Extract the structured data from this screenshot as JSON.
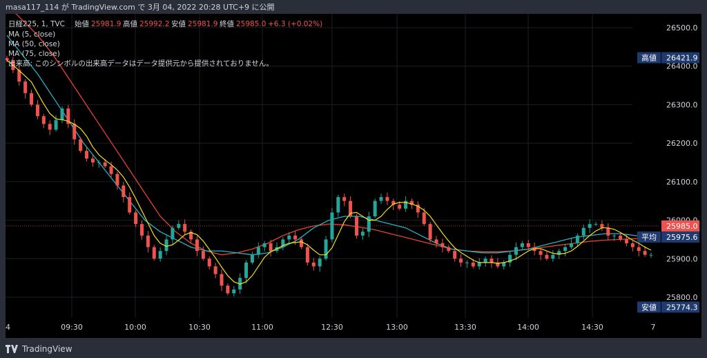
{
  "header": {
    "text": "masa117_114 が TradingView.com で 3月 04, 2022 20:28 UTC+9 に公開"
  },
  "legend": {
    "symbol": "日経225, 1, TVC",
    "ohlc": [
      {
        "label": "始値",
        "value": "25981.9"
      },
      {
        "label": "高値",
        "value": "25992.2"
      },
      {
        "label": "安値",
        "value": "25981.9"
      },
      {
        "label": "終値",
        "value": "25985.0"
      }
    ],
    "change": "+6.3 (+0.02%)",
    "indicators": [
      "MA (5, close)",
      "MA (50, close)",
      "MA (75, close)"
    ],
    "volume_note": "出来高: このシンボルの出来高データはデータ提供元から提供されておりません。"
  },
  "footer": {
    "brand": "TradingView"
  },
  "colors": {
    "background": "#000000",
    "frame": "#2a2e39",
    "up": "#26a69a",
    "down": "#ef5350",
    "ma5": "#f5e11b",
    "ma50": "#22b5c6",
    "ma75": "#e84430",
    "label_bg": "#1e3a6e",
    "last_label_bg": "#ef5350"
  },
  "chart_data": {
    "type": "candlestick",
    "y_axis": {
      "ticks": [
        "25800.0",
        "25900.0",
        "26000.0",
        "26100.0",
        "26200.0",
        "26300.0",
        "26400.0",
        "26500.0"
      ]
    },
    "x_axis": {
      "ticks": [
        "4",
        "09:30",
        "10:00",
        "10:30",
        "11:00",
        "12:30",
        "13:00",
        "13:30",
        "14:00",
        "14:30",
        "7"
      ]
    },
    "price_labels": [
      {
        "label": "高値",
        "value": "26421.9"
      },
      {
        "label": "",
        "value": "25985.0"
      },
      {
        "label": "平均",
        "value": "25975.6"
      },
      {
        "label": "安値",
        "value": "25774.3"
      }
    ],
    "close_series": [
      26415,
      26390,
      26360,
      26330,
      26300,
      26270,
      26250,
      26235,
      26260,
      26290,
      26250,
      26210,
      26180,
      26160,
      26150,
      26150,
      26140,
      26120,
      26090,
      26060,
      26020,
      25990,
      25960,
      25930,
      25900,
      25920,
      25950,
      25980,
      25990,
      25970,
      25950,
      25920,
      25900,
      25880,
      25860,
      25830,
      25810,
      25820,
      25850,
      25890,
      25910,
      25930,
      25940,
      25920,
      25930,
      25950,
      25960,
      25950,
      25930,
      25890,
      25880,
      25900,
      25950,
      26020,
      26060,
      26050,
      26010,
      25960,
      25970,
      26010,
      26050,
      26060,
      26050,
      26040,
      26030,
      26050,
      26040,
      26020,
      25990,
      25950,
      25940,
      25930,
      25920,
      25900,
      25890,
      25890,
      25880,
      25890,
      25900,
      25890,
      25880,
      25890,
      25910,
      25930,
      25940,
      25930,
      25920,
      25910,
      25900,
      25910,
      25920,
      25930,
      25940,
      25960,
      25980,
      25990,
      25990,
      25980,
      25960,
      25960,
      25950,
      25940,
      25930,
      25920,
      25910,
      25910
    ],
    "ma50_series": [
      26480,
      26430,
      26380,
      26320,
      26260,
      26200,
      26150,
      26100,
      26050,
      26000,
      25970,
      25950,
      25930,
      25920,
      25920,
      25915,
      25910,
      25915,
      25930,
      25950,
      25980,
      26000,
      26010,
      26010,
      26000,
      25990,
      25980,
      25960,
      25940,
      25925,
      25920,
      25915,
      25915,
      25920,
      25925,
      25935,
      25945,
      25955,
      25960,
      25965,
      25965,
      25960,
      25955
    ],
    "ma75_series": [
      26560,
      26520,
      26480,
      26430,
      26370,
      26310,
      26250,
      26190,
      26130,
      26070,
      26010,
      25970,
      25940,
      25920,
      25910,
      25915,
      25925,
      25940,
      25960,
      25975,
      25985,
      25990,
      25988,
      25982,
      25975,
      25965,
      25955,
      25945,
      25935,
      25925,
      25920,
      25918,
      25918,
      25920,
      25925,
      25930,
      25935,
      25940,
      25945,
      25948,
      25950,
      25952,
      25953
    ]
  }
}
